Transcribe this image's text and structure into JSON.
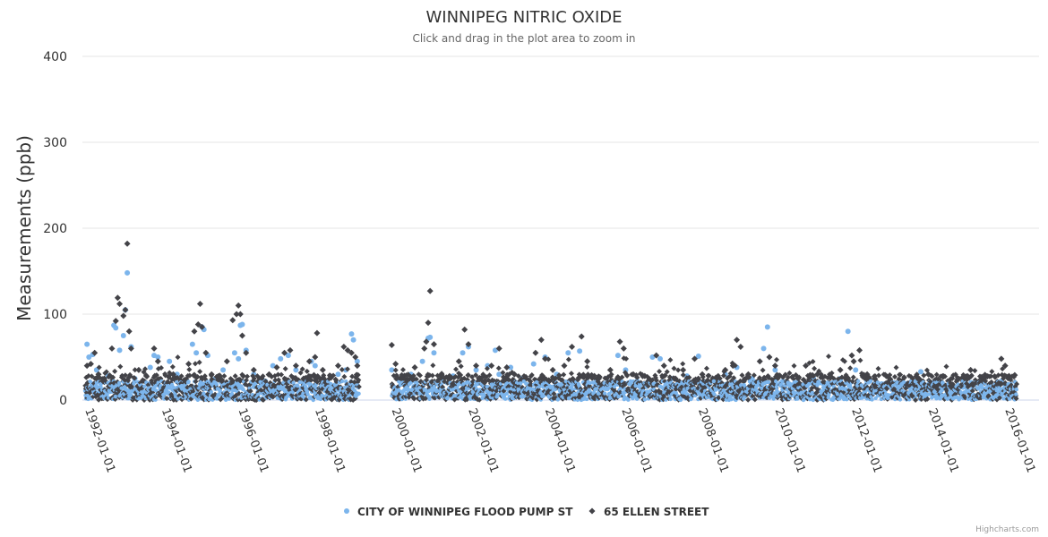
{
  "chart_data": {
    "type": "scatter",
    "title": "WINNIPEG NITRIC OXIDE",
    "subtitle": "Click and drag in the plot area to zoom in",
    "ylabel": "Measurements (ppb)",
    "xlabel": "",
    "ylim": [
      0,
      400
    ],
    "yticks": [
      "0",
      "100",
      "200",
      "300",
      "400"
    ],
    "xlim": [
      1992.0,
      2016.3
    ],
    "xticks": [
      {
        "year": 1992,
        "label": "1992-01-01"
      },
      {
        "year": 1994,
        "label": "1994-01-01"
      },
      {
        "year": 1996,
        "label": "1996-01-01"
      },
      {
        "year": 1998,
        "label": "1998-01-01"
      },
      {
        "year": 2000,
        "label": "2000-01-01"
      },
      {
        "year": 2002,
        "label": "2002-01-01"
      },
      {
        "year": 2004,
        "label": "2004-01-01"
      },
      {
        "year": 2006,
        "label": "2006-01-01"
      },
      {
        "year": 2008,
        "label": "2008-01-01"
      },
      {
        "year": 2010,
        "label": "2010-01-01"
      },
      {
        "year": 2012,
        "label": "2012-01-01"
      },
      {
        "year": 2014,
        "label": "2014-01-01"
      },
      {
        "year": 2016,
        "label": "2016-01-01"
      }
    ],
    "grid": true,
    "legend_position": "bottom-center",
    "series": [
      {
        "name": "CITY OF WINNIPEG FLOOD PUMP ST",
        "marker": "circle",
        "color": "#7cb5ec",
        "points": [
          [
            1992.05,
            65
          ],
          [
            1992.1,
            50
          ],
          [
            1992.2,
            53
          ],
          [
            1992.3,
            35
          ],
          [
            1992.4,
            20
          ],
          [
            1992.5,
            12
          ],
          [
            1992.6,
            28
          ],
          [
            1992.75,
            87
          ],
          [
            1992.8,
            84
          ],
          [
            1992.9,
            58
          ],
          [
            1993.0,
            75
          ],
          [
            1993.05,
            105
          ],
          [
            1993.1,
            148
          ],
          [
            1993.2,
            62
          ],
          [
            1993.3,
            25
          ],
          [
            1993.5,
            15
          ],
          [
            1993.7,
            38
          ],
          [
            1993.8,
            52
          ],
          [
            1993.9,
            50
          ],
          [
            1994.2,
            45
          ],
          [
            1994.4,
            30
          ],
          [
            1994.6,
            18
          ],
          [
            1994.8,
            65
          ],
          [
            1994.9,
            55
          ],
          [
            1995.05,
            85
          ],
          [
            1995.1,
            82
          ],
          [
            1995.2,
            52
          ],
          [
            1995.4,
            25
          ],
          [
            1995.6,
            35
          ],
          [
            1995.8,
            20
          ],
          [
            1995.9,
            55
          ],
          [
            1996.0,
            48
          ],
          [
            1996.05,
            87
          ],
          [
            1996.1,
            88
          ],
          [
            1996.2,
            58
          ],
          [
            1996.4,
            30
          ],
          [
            1996.7,
            22
          ],
          [
            1996.9,
            40
          ],
          [
            1997.1,
            48
          ],
          [
            1997.3,
            52
          ],
          [
            1997.5,
            35
          ],
          [
            1997.7,
            20
          ],
          [
            1997.9,
            45
          ],
          [
            1998.0,
            40
          ],
          [
            1998.2,
            25
          ],
          [
            1998.4,
            18
          ],
          [
            1998.6,
            30
          ],
          [
            1998.8,
            35
          ],
          [
            1998.95,
            77
          ],
          [
            1999.0,
            70
          ],
          [
            1999.1,
            45
          ],
          [
            2000.0,
            35
          ],
          [
            2000.2,
            22
          ],
          [
            2000.5,
            30
          ],
          [
            2000.8,
            45
          ],
          [
            2000.95,
            72
          ],
          [
            2001.0,
            73
          ],
          [
            2001.1,
            55
          ],
          [
            2001.3,
            25
          ],
          [
            2001.6,
            28
          ],
          [
            2001.85,
            55
          ],
          [
            2002.0,
            62
          ],
          [
            2002.2,
            35
          ],
          [
            2002.5,
            40
          ],
          [
            2002.7,
            58
          ],
          [
            2002.8,
            30
          ],
          [
            2003.1,
            38
          ],
          [
            2003.4,
            25
          ],
          [
            2003.7,
            42
          ],
          [
            2004.0,
            50
          ],
          [
            2004.3,
            30
          ],
          [
            2004.6,
            55
          ],
          [
            2004.9,
            57
          ],
          [
            2005.2,
            28
          ],
          [
            2005.6,
            25
          ],
          [
            2005.9,
            52
          ],
          [
            2006.1,
            35
          ],
          [
            2006.4,
            22
          ],
          [
            2006.8,
            50
          ],
          [
            2007.0,
            48
          ],
          [
            2007.3,
            25
          ],
          [
            2007.7,
            28
          ],
          [
            2008.0,
            51
          ],
          [
            2008.3,
            20
          ],
          [
            2008.7,
            30
          ],
          [
            2009.0,
            38
          ],
          [
            2009.4,
            25
          ],
          [
            2009.7,
            60
          ],
          [
            2009.8,
            85
          ],
          [
            2010.0,
            35
          ],
          [
            2010.2,
            22
          ],
          [
            2010.6,
            20
          ],
          [
            2011.0,
            25
          ],
          [
            2011.3,
            18
          ],
          [
            2011.7,
            25
          ],
          [
            2011.9,
            80
          ],
          [
            2012.1,
            35
          ],
          [
            2012.4,
            22
          ],
          [
            2012.8,
            18
          ],
          [
            2013.1,
            20
          ],
          [
            2013.5,
            15
          ],
          [
            2013.8,
            33
          ],
          [
            2014.1,
            20
          ],
          [
            2014.5,
            12
          ],
          [
            2014.9,
            15
          ],
          [
            2015.2,
            18
          ],
          [
            2015.6,
            12
          ],
          [
            2015.9,
            22
          ],
          [
            2016.0,
            18
          ],
          [
            2016.2,
            10
          ]
        ]
      },
      {
        "name": "65 ELLEN STREET",
        "marker": "diamond",
        "color": "#434348",
        "points": [
          [
            1992.05,
            40
          ],
          [
            1992.15,
            42
          ],
          [
            1992.25,
            55
          ],
          [
            1992.35,
            30
          ],
          [
            1992.5,
            25
          ],
          [
            1992.7,
            60
          ],
          [
            1992.8,
            92
          ],
          [
            1992.85,
            119
          ],
          [
            1992.9,
            112
          ],
          [
            1993.0,
            98
          ],
          [
            1993.05,
            105
          ],
          [
            1993.1,
            182
          ],
          [
            1993.15,
            80
          ],
          [
            1993.2,
            60
          ],
          [
            1993.4,
            35
          ],
          [
            1993.6,
            28
          ],
          [
            1993.8,
            60
          ],
          [
            1993.9,
            45
          ],
          [
            1994.3,
            30
          ],
          [
            1994.5,
            20
          ],
          [
            1994.7,
            42
          ],
          [
            1994.85,
            80
          ],
          [
            1994.95,
            88
          ],
          [
            1995.0,
            112
          ],
          [
            1995.05,
            85
          ],
          [
            1995.15,
            55
          ],
          [
            1995.3,
            30
          ],
          [
            1995.5,
            25
          ],
          [
            1995.7,
            45
          ],
          [
            1995.85,
            93
          ],
          [
            1995.95,
            100
          ],
          [
            1996.0,
            110
          ],
          [
            1996.05,
            100
          ],
          [
            1996.1,
            75
          ],
          [
            1996.2,
            55
          ],
          [
            1996.4,
            35
          ],
          [
            1996.6,
            25
          ],
          [
            1996.8,
            30
          ],
          [
            1997.0,
            38
          ],
          [
            1997.2,
            55
          ],
          [
            1997.35,
            58
          ],
          [
            1997.5,
            40
          ],
          [
            1997.7,
            25
          ],
          [
            1997.85,
            45
          ],
          [
            1998.0,
            50
          ],
          [
            1998.05,
            78
          ],
          [
            1998.2,
            35
          ],
          [
            1998.4,
            28
          ],
          [
            1998.6,
            40
          ],
          [
            1998.75,
            62
          ],
          [
            1998.85,
            58
          ],
          [
            1998.95,
            55
          ],
          [
            1999.05,
            50
          ],
          [
            1999.1,
            40
          ],
          [
            2000.0,
            64
          ],
          [
            2000.1,
            42
          ],
          [
            2000.3,
            25
          ],
          [
            2000.6,
            38
          ],
          [
            2000.85,
            60
          ],
          [
            2000.9,
            68
          ],
          [
            2000.95,
            90
          ],
          [
            2001.0,
            127
          ],
          [
            2001.1,
            65
          ],
          [
            2001.3,
            30
          ],
          [
            2001.5,
            25
          ],
          [
            2001.75,
            45
          ],
          [
            2001.9,
            82
          ],
          [
            2002.0,
            65
          ],
          [
            2002.2,
            40
          ],
          [
            2002.4,
            28
          ],
          [
            2002.6,
            40
          ],
          [
            2002.8,
            60
          ],
          [
            2003.0,
            38
          ],
          [
            2003.2,
            30
          ],
          [
            2003.5,
            25
          ],
          [
            2003.75,
            55
          ],
          [
            2003.9,
            70
          ],
          [
            2004.0,
            48
          ],
          [
            2004.2,
            35
          ],
          [
            2004.5,
            40
          ],
          [
            2004.7,
            62
          ],
          [
            2004.95,
            74
          ],
          [
            2005.1,
            45
          ],
          [
            2005.4,
            25
          ],
          [
            2005.7,
            35
          ],
          [
            2005.95,
            68
          ],
          [
            2006.05,
            60
          ],
          [
            2006.3,
            30
          ],
          [
            2006.6,
            28
          ],
          [
            2006.9,
            52
          ],
          [
            2007.1,
            40
          ],
          [
            2007.4,
            25
          ],
          [
            2007.6,
            35
          ],
          [
            2007.9,
            48
          ],
          [
            2008.1,
            30
          ],
          [
            2008.4,
            22
          ],
          [
            2008.7,
            35
          ],
          [
            2008.9,
            40
          ],
          [
            2009.0,
            70
          ],
          [
            2009.1,
            62
          ],
          [
            2009.3,
            30
          ],
          [
            2009.6,
            45
          ],
          [
            2009.85,
            50
          ],
          [
            2010.0,
            40
          ],
          [
            2010.3,
            22
          ],
          [
            2010.6,
            25
          ],
          [
            2010.8,
            40
          ],
          [
            2011.1,
            30
          ],
          [
            2011.4,
            20
          ],
          [
            2011.7,
            35
          ],
          [
            2012.0,
            52
          ],
          [
            2012.05,
            45
          ],
          [
            2012.2,
            58
          ],
          [
            2012.4,
            30
          ],
          [
            2012.6,
            25
          ],
          [
            2012.9,
            28
          ],
          [
            2013.2,
            20
          ],
          [
            2013.5,
            18
          ],
          [
            2013.75,
            25
          ],
          [
            2014.0,
            30
          ],
          [
            2014.3,
            22
          ],
          [
            2014.6,
            15
          ],
          [
            2014.9,
            25
          ],
          [
            2015.1,
            35
          ],
          [
            2015.3,
            20
          ],
          [
            2015.6,
            15
          ],
          [
            2015.9,
            48
          ],
          [
            2016.0,
            40
          ],
          [
            2016.1,
            28
          ],
          [
            2016.25,
            29
          ]
        ]
      }
    ]
  },
  "credits": "Highcharts.com"
}
